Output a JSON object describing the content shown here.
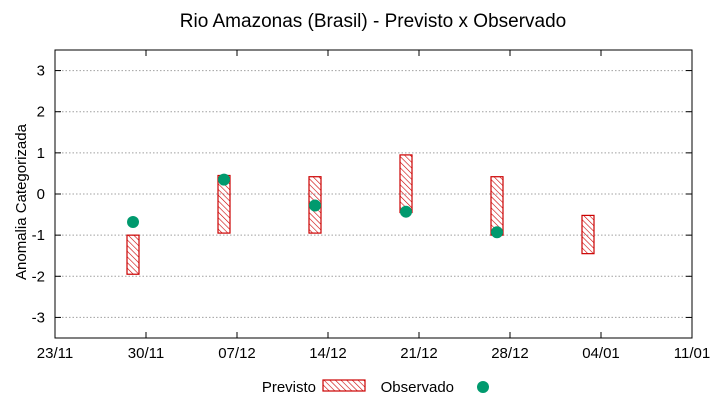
{
  "chart_data": {
    "type": "range-bar-with-points",
    "title": "Rio Amazonas (Brasil) - Previsto x Observado",
    "xlabel": "",
    "ylabel": "Anomalia Categorizada",
    "ylim": [
      -3.5,
      3.5
    ],
    "yticks": [
      -3,
      -2,
      -1,
      0,
      1,
      2,
      3
    ],
    "x_day_range": [
      0,
      49
    ],
    "xticks": [
      {
        "day": 0,
        "label": "23/11"
      },
      {
        "day": 7,
        "label": "30/11"
      },
      {
        "day": 14,
        "label": "07/12"
      },
      {
        "day": 21,
        "label": "14/12"
      },
      {
        "day": 28,
        "label": "21/12"
      },
      {
        "day": 35,
        "label": "28/12"
      },
      {
        "day": 42,
        "label": "04/01"
      },
      {
        "day": 49,
        "label": "11/01"
      }
    ],
    "grid": "horizontal dotted",
    "series": [
      {
        "name": "Previsto",
        "kind": "range",
        "color": "#cc0000",
        "points": [
          {
            "day": 6,
            "low": -1.95,
            "high": -1.0
          },
          {
            "day": 13,
            "low": -0.95,
            "high": 0.45
          },
          {
            "day": 20,
            "low": -0.95,
            "high": 0.42
          },
          {
            "day": 27,
            "low": -0.45,
            "high": 0.95
          },
          {
            "day": 34,
            "low": -1.0,
            "high": 0.42
          },
          {
            "day": 41,
            "low": -1.45,
            "high": -0.52
          }
        ]
      },
      {
        "name": "Observado",
        "kind": "point",
        "color": "#009a6e",
        "points": [
          {
            "day": 6,
            "value": -0.68
          },
          {
            "day": 13,
            "value": 0.35
          },
          {
            "day": 20,
            "value": -0.28
          },
          {
            "day": 27,
            "value": -0.43
          },
          {
            "day": 34,
            "value": -0.93
          }
        ]
      }
    ],
    "legend_position": "bottom"
  }
}
